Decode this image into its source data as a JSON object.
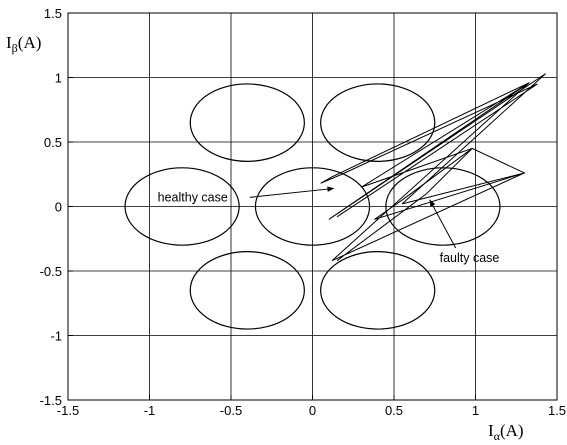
{
  "chart_data": {
    "type": "line",
    "title": "",
    "xlabel": {
      "base": "I",
      "sub": "α",
      "unit": "(A)"
    },
    "ylabel": {
      "base": "I",
      "sub": "β",
      "unit": "(A)"
    },
    "xlim": [
      -1.5,
      1.5
    ],
    "ylim": [
      -1.5,
      1.5
    ],
    "grid": true,
    "x_ticks": [
      -1.5,
      -1,
      -0.5,
      0,
      0.5,
      1,
      1.5
    ],
    "y_ticks": [
      -1.5,
      -1,
      -0.5,
      0,
      0.5,
      1,
      1.5
    ],
    "x_tick_labels": [
      "-1.5",
      "-1",
      "-0.5",
      "0",
      "0.5",
      "1",
      "1.5"
    ],
    "y_tick_labels": [
      "-1.5",
      "-1",
      "-0.5",
      "0",
      "0.5",
      "1",
      "1.5"
    ],
    "ellipses": [
      {
        "cx": -0.4,
        "cy": 0.65,
        "rx": 0.35,
        "ry": 0.3
      },
      {
        "cx": 0.4,
        "cy": 0.65,
        "rx": 0.35,
        "ry": 0.3
      },
      {
        "cx": -0.8,
        "cy": 0.0,
        "rx": 0.35,
        "ry": 0.3
      },
      {
        "cx": 0.0,
        "cy": 0.0,
        "rx": 0.35,
        "ry": 0.3
      },
      {
        "cx": 0.8,
        "cy": 0.0,
        "rx": 0.35,
        "ry": 0.3
      },
      {
        "cx": -0.4,
        "cy": -0.65,
        "rx": 0.35,
        "ry": 0.3
      },
      {
        "cx": 0.4,
        "cy": -0.65,
        "rx": 0.35,
        "ry": 0.3
      }
    ],
    "series": [
      {
        "label": "faulty case",
        "x": [
          0.15,
          1.38,
          0.18,
          0.05,
          0.12,
          1.33,
          0.1,
          1.43,
          0.55,
          1.3,
          0.12,
          1.33,
          0.3,
          0.98,
          1.3,
          0.38,
          0.55,
          0.98,
          0.7,
          0.15
        ],
        "y": [
          -0.08,
          0.95,
          0.25,
          0.18,
          0.23,
          0.96,
          -0.1,
          1.03,
          0.02,
          0.26,
          -0.42,
          0.96,
          0.15,
          0.45,
          0.26,
          -0.1,
          0.05,
          0.45,
          0.1,
          -0.42
        ]
      }
    ],
    "annotations": [
      {
        "text": "healthy case",
        "text_at": [
          -0.95,
          0.04
        ],
        "arrow_to": [
          0.13,
          0.14
        ]
      },
      {
        "text": "faulty case",
        "text_at": [
          0.78,
          -0.43
        ],
        "arrow_to": [
          0.72,
          0.05
        ]
      }
    ]
  }
}
